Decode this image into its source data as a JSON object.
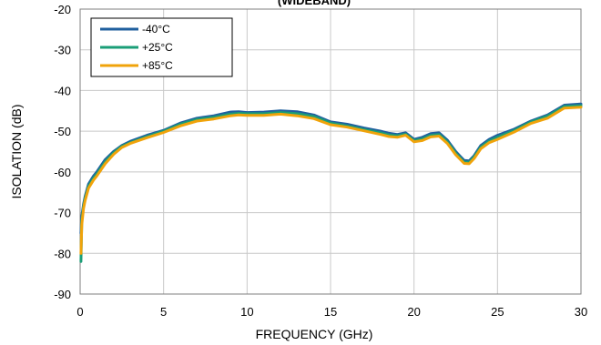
{
  "chart_data": {
    "type": "line",
    "title": "(WIDEBAND)",
    "xlabel": "FREQUENCY (GHz)",
    "ylabel": "ISOLATION (dB)",
    "xlim": [
      0,
      30
    ],
    "ylim": [
      -90,
      -20
    ],
    "xticks": [
      0,
      5,
      10,
      15,
      20,
      25,
      30
    ],
    "yticks": [
      -90,
      -80,
      -70,
      -60,
      -50,
      -40,
      -30,
      -20
    ],
    "grid": true,
    "legend_position": "top-left",
    "x": [
      0.05,
      0.1,
      0.2,
      0.3,
      0.5,
      0.8,
      1,
      1.5,
      2,
      2.5,
      3,
      4,
      5,
      6,
      7,
      8,
      9,
      9.5,
      10,
      11,
      12,
      13,
      14,
      15,
      16,
      17,
      18,
      18.5,
      19,
      19.5,
      20,
      20.5,
      21,
      21.5,
      22,
      22.5,
      23,
      23.3,
      23.6,
      24,
      24.5,
      25,
      26,
      27,
      28,
      29,
      30
    ],
    "series": [
      {
        "name": "-40°C",
        "color": "#1f5f9e",
        "values": [
          -75,
          -71,
          -68,
          -66,
          -63,
          -61,
          -60,
          -57,
          -55,
          -53.5,
          -52.5,
          -51,
          -49.8,
          -48,
          -46.8,
          -46.2,
          -45.3,
          -45.2,
          -45.4,
          -45.3,
          -45,
          -45.2,
          -46,
          -47.7,
          -48.3,
          -49.2,
          -50,
          -50.5,
          -50.8,
          -50.4,
          -52,
          -51.5,
          -50.6,
          -50.4,
          -52.2,
          -55,
          -57.2,
          -57.3,
          -56,
          -53.5,
          -52,
          -51,
          -49.5,
          -47.5,
          -46,
          -43.6,
          -43.3
        ]
      },
      {
        "name": "+25°C",
        "color": "#1a9e77",
        "values": [
          -82,
          -72,
          -68.5,
          -66.5,
          -63.5,
          -61.5,
          -60.5,
          -57.5,
          -55.3,
          -53.7,
          -52.8,
          -51.3,
          -50,
          -48.3,
          -47.1,
          -46.6,
          -45.8,
          -45.6,
          -45.7,
          -45.7,
          -45.4,
          -45.7,
          -46.4,
          -48,
          -48.7,
          -49.6,
          -50.4,
          -50.9,
          -51.1,
          -50.7,
          -52.3,
          -51.9,
          -51,
          -50.8,
          -52.6,
          -55.4,
          -57.6,
          -57.6,
          -56.3,
          -53.9,
          -52.4,
          -51.5,
          -49.8,
          -47.7,
          -46.3,
          -43.9,
          -43.7
        ]
      },
      {
        "name": "+85°C",
        "color": "#f0a30a",
        "values": [
          -80,
          -73,
          -69,
          -67,
          -64,
          -62,
          -61,
          -58,
          -55.7,
          -54,
          -53,
          -51.6,
          -50.3,
          -48.7,
          -47.5,
          -47,
          -46.2,
          -46,
          -46.1,
          -46.1,
          -45.8,
          -46.2,
          -46.9,
          -48.4,
          -49,
          -49.9,
          -50.8,
          -51.3,
          -51.5,
          -51,
          -52.6,
          -52.3,
          -51.4,
          -51.2,
          -53,
          -55.8,
          -57.9,
          -58,
          -56.7,
          -54.3,
          -52.8,
          -52,
          -50.2,
          -48.1,
          -46.8,
          -44.3,
          -44.1
        ]
      }
    ]
  }
}
